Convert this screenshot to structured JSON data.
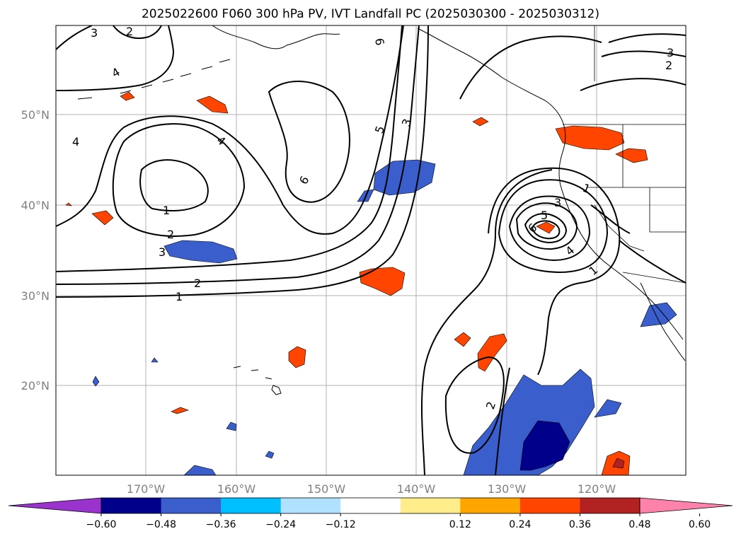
{
  "title": "2025022600 F060 300 hPa PV, IVT Landfall PC (2025030300 - 2025030312)",
  "map": {
    "lon_ticks": [
      "170°W",
      "160°W",
      "150°W",
      "140°W",
      "130°W",
      "120°W"
    ],
    "lat_ticks": [
      "50°N",
      "40°N",
      "30°N",
      "20°N"
    ],
    "gridlines": true
  },
  "contour_labels": [
    "3",
    "2",
    "4",
    "4",
    "4",
    "1",
    "2",
    "3",
    "6",
    "5",
    "3",
    "6",
    "2",
    "1",
    "3",
    "5",
    "6",
    "4",
    "1",
    "2",
    "3",
    "2",
    "1"
  ],
  "colorbar": {
    "ticks": [
      "−0.60",
      "−0.48",
      "−0.36",
      "−0.24",
      "−0.12",
      "0.12",
      "0.24",
      "0.36",
      "0.48",
      "0.60"
    ],
    "colors": [
      "#9a32cd",
      "#00008b",
      "#3a5fcd",
      "#00bfff",
      "#b0e2ff",
      "#ffffff",
      "#ffec8b",
      "#ffa500",
      "#ff4500",
      "#b22222",
      "#ff82ab"
    ]
  }
}
